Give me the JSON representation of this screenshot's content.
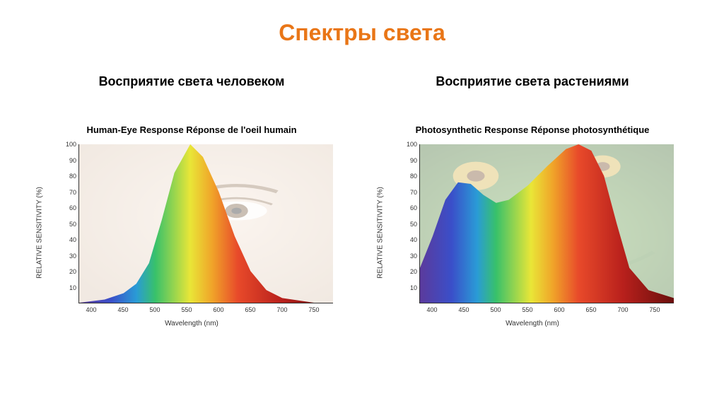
{
  "title": {
    "text": "Спектры света",
    "color": "#e97617",
    "fontsize": 32
  },
  "charts": {
    "labels": {
      "y_axis": "RELATIVE SENSITIVITY (%)",
      "x_axis": "Wavelength (nm)",
      "label_fontsize": 10,
      "label_color": "#333333"
    },
    "axes": {
      "x_min": 380,
      "x_max": 780,
      "y_min": 0,
      "y_max": 100,
      "x_ticks": [
        400,
        450,
        500,
        550,
        600,
        650,
        700,
        750
      ],
      "y_ticks": [
        10,
        20,
        30,
        40,
        50,
        60,
        70,
        80,
        90,
        100
      ],
      "tick_fontsize": 9,
      "axis_color": "#333333"
    },
    "spectrum_stops": [
      {
        "nm": 380,
        "c": "#5b3a9c"
      },
      {
        "nm": 430,
        "c": "#3a4fc9"
      },
      {
        "nm": 470,
        "c": "#2a9bd6"
      },
      {
        "nm": 500,
        "c": "#38c16a"
      },
      {
        "nm": 555,
        "c": "#e9e637"
      },
      {
        "nm": 590,
        "c": "#f0a329"
      },
      {
        "nm": 630,
        "c": "#e84a2a"
      },
      {
        "nm": 700,
        "c": "#b8201c"
      },
      {
        "nm": 780,
        "c": "#6a0f0d"
      }
    ],
    "human": {
      "subtitle": "Восприятие света человеком",
      "subtitle_fontsize": 18,
      "subtitle_color": "#000000",
      "chart_title": "Human-Eye Response   Réponse de l'oeil humain",
      "chart_title_fontsize": 13,
      "chart_title_color": "#000000",
      "bg_hint": "face-closeup",
      "curve": [
        {
          "nm": 380,
          "v": 0
        },
        {
          "nm": 420,
          "v": 2
        },
        {
          "nm": 450,
          "v": 6
        },
        {
          "nm": 470,
          "v": 12
        },
        {
          "nm": 490,
          "v": 25
        },
        {
          "nm": 510,
          "v": 52
        },
        {
          "nm": 530,
          "v": 82
        },
        {
          "nm": 555,
          "v": 100
        },
        {
          "nm": 575,
          "v": 92
        },
        {
          "nm": 600,
          "v": 70
        },
        {
          "nm": 625,
          "v": 42
        },
        {
          "nm": 650,
          "v": 20
        },
        {
          "nm": 675,
          "v": 8
        },
        {
          "nm": 700,
          "v": 3
        },
        {
          "nm": 750,
          "v": 0
        },
        {
          "nm": 780,
          "v": 0
        }
      ]
    },
    "plant": {
      "subtitle": "Восприятие света растениями",
      "subtitle_fontsize": 18,
      "subtitle_color": "#000000",
      "chart_title": "Photosynthetic Response   Réponse photosynthétique",
      "chart_title_fontsize": 13,
      "chart_title_color": "#000000",
      "bg_hint": "sunflowers-leaves",
      "curve": [
        {
          "nm": 380,
          "v": 22
        },
        {
          "nm": 400,
          "v": 42
        },
        {
          "nm": 420,
          "v": 65
        },
        {
          "nm": 440,
          "v": 76
        },
        {
          "nm": 460,
          "v": 75
        },
        {
          "nm": 480,
          "v": 68
        },
        {
          "nm": 500,
          "v": 63
        },
        {
          "nm": 520,
          "v": 65
        },
        {
          "nm": 550,
          "v": 74
        },
        {
          "nm": 580,
          "v": 86
        },
        {
          "nm": 610,
          "v": 97
        },
        {
          "nm": 630,
          "v": 100
        },
        {
          "nm": 650,
          "v": 96
        },
        {
          "nm": 670,
          "v": 80
        },
        {
          "nm": 690,
          "v": 50
        },
        {
          "nm": 710,
          "v": 22
        },
        {
          "nm": 740,
          "v": 8
        },
        {
          "nm": 780,
          "v": 3
        }
      ]
    }
  },
  "background_color": "#ffffff"
}
